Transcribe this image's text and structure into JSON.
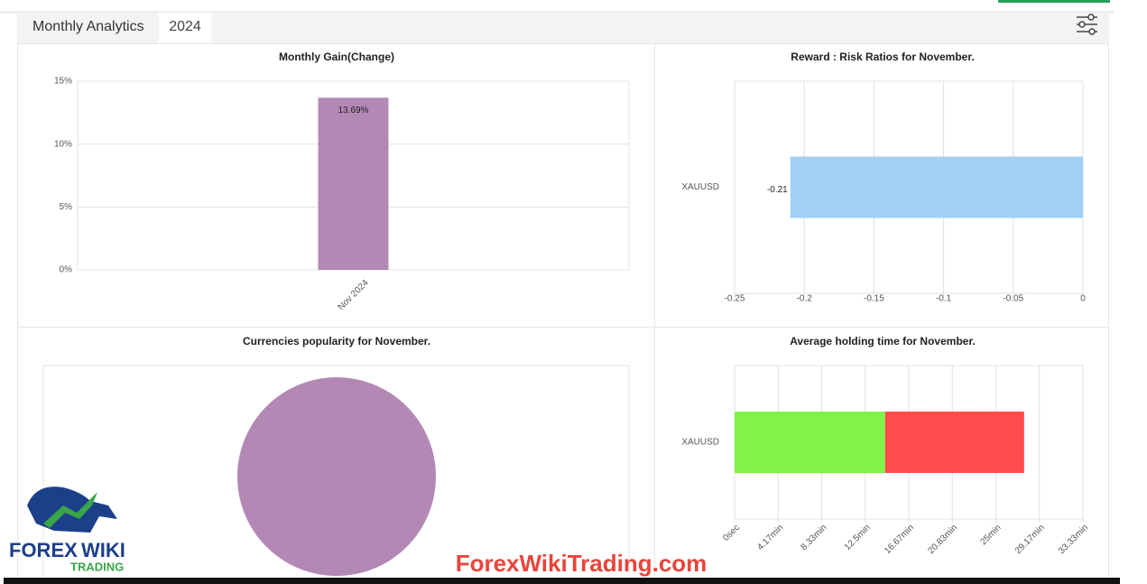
{
  "header": {
    "title": "Monthly Analytics",
    "year": "2024"
  },
  "chart_data": [
    {
      "type": "bar",
      "title": "Monthly Gain(Change)",
      "categories": [
        "Nov 2024"
      ],
      "values": [
        13.69
      ],
      "value_labels": [
        "13.69%"
      ],
      "color": "#b388b5",
      "ylim": [
        0,
        15
      ],
      "yticks": [
        {
          "value": 0,
          "label": "0%"
        },
        {
          "value": 5,
          "label": "5%"
        },
        {
          "value": 10,
          "label": "10%"
        },
        {
          "value": 15,
          "label": "15%"
        }
      ],
      "grid": true
    },
    {
      "type": "hbar",
      "title": "Reward : Risk Ratios for November.",
      "categories": [
        "XAUUSD"
      ],
      "values": [
        -0.21
      ],
      "color": "#a0d0f5",
      "xlim": [
        -0.25,
        0
      ],
      "xticks": [
        -0.25,
        -0.2,
        -0.15,
        -0.1,
        -0.05,
        0
      ],
      "grid": true
    },
    {
      "type": "pie",
      "title": "Currencies popularity for November.",
      "values": [
        100
      ],
      "color": "#b388b5"
    },
    {
      "type": "hbar",
      "title": "Average holding time for November.",
      "categories": [
        "XAUUSD"
      ],
      "stacked": true,
      "series": [
        {
          "color": "#80f24a",
          "values": [
            14.4
          ]
        },
        {
          "color": "#ff4c4c",
          "values": [
            13.3
          ]
        }
      ],
      "xlim": [
        0,
        33.33
      ],
      "xticks": [
        {
          "value": 0,
          "label": "0sec"
        },
        {
          "value": 4.17,
          "label": "4.17min"
        },
        {
          "value": 8.33,
          "label": "8.33min"
        },
        {
          "value": 12.5,
          "label": "12.5min"
        },
        {
          "value": 16.67,
          "label": "16.67min"
        },
        {
          "value": 20.83,
          "label": "20.83min"
        },
        {
          "value": 25,
          "label": "25min"
        },
        {
          "value": 29.17,
          "label": "29.17min"
        },
        {
          "value": 33.33,
          "label": "33.33min"
        }
      ],
      "grid": true
    }
  ],
  "logo": {
    "word1": "FOREX",
    "word2": "WIKI",
    "word3": "TRADING"
  },
  "watermark": "ForexWikiTrading.com"
}
